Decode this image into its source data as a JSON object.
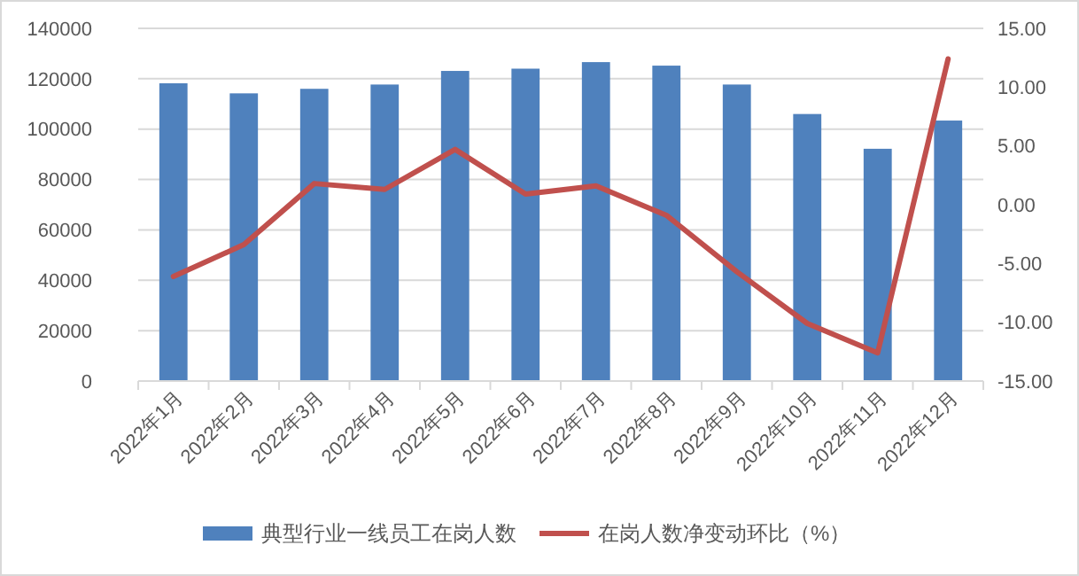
{
  "chart_data": {
    "type": "bar",
    "categories": [
      "2022年1月",
      "2022年2月",
      "2022年3月",
      "2022年4月",
      "2022年5月",
      "2022年6月",
      "2022年7月",
      "2022年8月",
      "2022年9月",
      "2022年10月",
      "2022年11月",
      "2022年12月"
    ],
    "series": [
      {
        "name": "典型行业一线员工在岗人数",
        "color": "#4f81bd",
        "values": [
          118200,
          114200,
          116000,
          117700,
          123100,
          124000,
          126600,
          125200,
          117700,
          106000,
          92200,
          103400
        ]
      },
      {
        "name": "在岗人数净变动环比（%）",
        "type": "line",
        "axis": "y2",
        "color": "#c0504d",
        "values": [
          -6.1,
          -3.4,
          1.8,
          1.3,
          4.7,
          0.9,
          1.6,
          -0.9,
          -5.7,
          -10.1,
          -12.6,
          12.4
        ]
      }
    ],
    "ylim": [
      0,
      140000
    ],
    "yticks": [
      0,
      20000,
      40000,
      60000,
      80000,
      100000,
      120000,
      140000
    ],
    "y2lim": [
      -15,
      15
    ],
    "y2ticks": [
      {
        "value": -15,
        "label": "-15.00"
      },
      {
        "value": -10,
        "label": "-10.00"
      },
      {
        "value": -5,
        "label": "-5.00"
      },
      {
        "value": 0,
        "label": "0.00"
      },
      {
        "value": 5,
        "label": "5.00"
      },
      {
        "value": 10,
        "label": "10.00"
      },
      {
        "value": 15,
        "label": "15.00"
      }
    ],
    "grid": "y",
    "legend": "bottom",
    "marker": "none",
    "line_style": "solid"
  }
}
